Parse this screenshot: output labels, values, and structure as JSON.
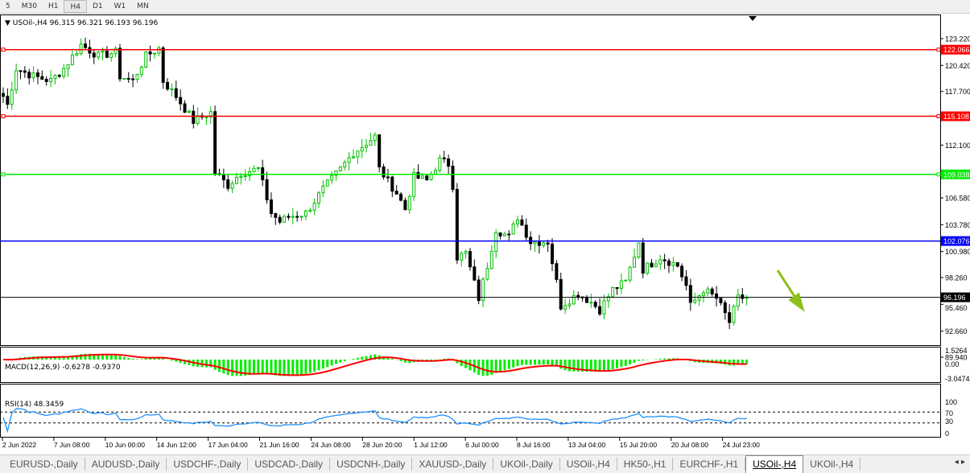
{
  "timeframes": [
    "5",
    "M30",
    "H1",
    "H4",
    "D1",
    "W1",
    "MN"
  ],
  "active_timeframe": "H4",
  "chart_header": {
    "symbol": "USOil-,H4",
    "ohlc": "96.315 96.321 96.193 96.196"
  },
  "price_axis": [
    "123.220",
    "120.420",
    "117.700",
    "112.100",
    "106.580",
    "103.780",
    "100.980",
    "98.260",
    "95.460",
    "92.660",
    "89.940"
  ],
  "hlines": [
    {
      "price": 122.066,
      "label": "122.066",
      "color": "#ff0000"
    },
    {
      "price": 115.108,
      "label": "115.108",
      "color": "#ff0000"
    },
    {
      "price": 109.038,
      "label": "109.038",
      "color": "#00ee00"
    },
    {
      "price": 102.076,
      "label": "102.076",
      "color": "#0000ff"
    },
    {
      "price": 96.196,
      "label": "96.196",
      "color": "#000000"
    }
  ],
  "colors": {
    "bull": "#00c000",
    "bear": "#000000",
    "macd_hist": "#00ee00",
    "macd_signal": "#ff0000",
    "rsi": "#1e90ff",
    "arrow": "#8fbf1a"
  },
  "chart_data": {
    "type": "candlestick",
    "ylim": [
      89.94,
      123.22
    ],
    "approx_close_path": [
      [
        0,
        117.2
      ],
      [
        1,
        116.3
      ],
      [
        3,
        120.1
      ],
      [
        7,
        119.3
      ],
      [
        11,
        118.8
      ],
      [
        14,
        120.1
      ],
      [
        18,
        122.6
      ],
      [
        22,
        121.4
      ],
      [
        26,
        121.8
      ],
      [
        27,
        119.3
      ],
      [
        30,
        118.8
      ],
      [
        33,
        121.4
      ],
      [
        36,
        122.2
      ],
      [
        37,
        118.8
      ],
      [
        40,
        117.2
      ],
      [
        44,
        114.6
      ],
      [
        48,
        115.5
      ],
      [
        49,
        109.2
      ],
      [
        52,
        107.9
      ],
      [
        55,
        109.2
      ],
      [
        59,
        109.6
      ],
      [
        62,
        105
      ],
      [
        64,
        104.1
      ],
      [
        66,
        104.6
      ],
      [
        70,
        105
      ],
      [
        74,
        107.5
      ],
      [
        78,
        109.6
      ],
      [
        81,
        111.3
      ],
      [
        86,
        113
      ],
      [
        87,
        109.6
      ],
      [
        91,
        107.1
      ],
      [
        93,
        105.4
      ],
      [
        95,
        108.8
      ],
      [
        98,
        108.4
      ],
      [
        101,
        110.5
      ],
      [
        103,
        110.1
      ],
      [
        104,
        107.9
      ],
      [
        105,
        100.4
      ],
      [
        107,
        100.8
      ],
      [
        110,
        96.1
      ],
      [
        112,
        99.5
      ],
      [
        114,
        103.3
      ],
      [
        117,
        102.5
      ],
      [
        119,
        104.6
      ],
      [
        122,
        102
      ],
      [
        126,
        102
      ],
      [
        128,
        97.8
      ],
      [
        129,
        95.3
      ],
      [
        133,
        96.6
      ],
      [
        136,
        95.7
      ],
      [
        138,
        94.9
      ],
      [
        141,
        97
      ],
      [
        144,
        97.8
      ],
      [
        147,
        102
      ],
      [
        148,
        99.1
      ],
      [
        152,
        100.4
      ],
      [
        156,
        99.5
      ],
      [
        158,
        97.4
      ],
      [
        159,
        95.3
      ],
      [
        162,
        97
      ],
      [
        165,
        96.1
      ],
      [
        168,
        93.6
      ],
      [
        170,
        96.1
      ],
      [
        172,
        96.2
      ]
    ],
    "time_labels": [
      "2 Jun 2022",
      "7 Jun 08:00",
      "10 Jun 00:00",
      "14 Jun 12:00",
      "17 Jun 04:00",
      "21 Jun 16:00",
      "24 Jun 08:00",
      "28 Jun 20:00",
      "1 Jul 12:00",
      "6 Jul 00:00",
      "8 Jul 16:00",
      "13 Jul 04:00",
      "15 Jul 20:00",
      "20 Jul 08:00",
      "24 Jul 23:00"
    ]
  },
  "macd": {
    "label": "MACD(12,26,9) -0.6278 -0.9370",
    "axis": [
      "1.5264",
      "0.00",
      "-3.0474"
    ]
  },
  "rsi": {
    "label": "RSI(14) 48.3459",
    "axis": [
      "100",
      "70",
      "30",
      "0"
    ]
  },
  "tabs": [
    "EURUSD-,Daily",
    "AUDUSD-,Daily",
    "USDCHF-,Daily",
    "USDCAD-,Daily",
    "USDCNH-,Daily",
    "XAUUSD-,Daily",
    "UKOil-,Daily",
    "USOil-,H4",
    "HK50-,H1",
    "EURCHF-,H1",
    "USOil-,H4",
    "UKOil-,H4"
  ],
  "active_tab": 10
}
